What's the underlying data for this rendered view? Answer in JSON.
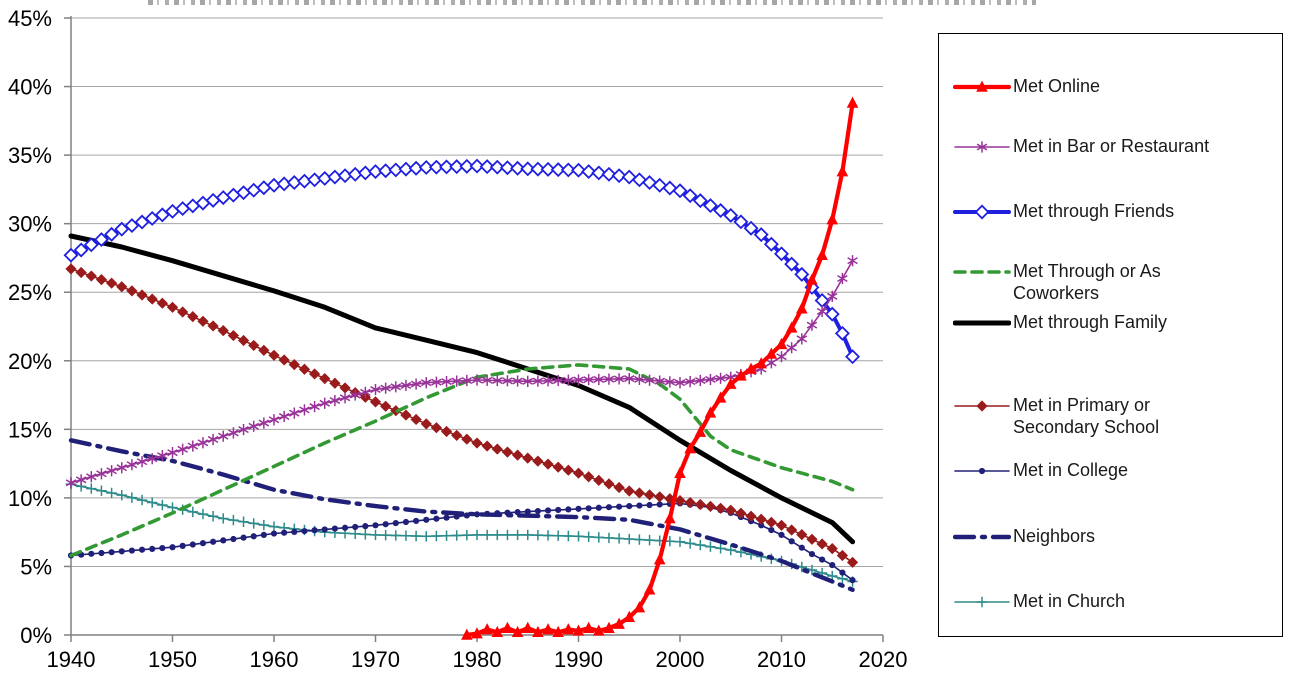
{
  "chart_data": {
    "type": "line",
    "title": "",
    "xlabel": "",
    "ylabel": "",
    "x_range": [
      1940,
      2020
    ],
    "y_range": [
      0,
      45
    ],
    "x_ticks": [
      1940,
      1950,
      1960,
      1970,
      1980,
      1990,
      2000,
      2010,
      2020
    ],
    "y_tick_labels": [
      "0%",
      "5%",
      "10%",
      "15%",
      "20%",
      "25%",
      "30%",
      "35%",
      "40%",
      "45%"
    ],
    "grid": "horizontal",
    "legend_position": "right",
    "axis_color": "#808080",
    "grid_color": "#a6a6a6",
    "series": [
      {
        "name": "Met Online",
        "color": "#ff0000",
        "line_width": 4.2,
        "dash": null,
        "marker": "triangle",
        "x": [
          1979,
          1980,
          1981,
          1982,
          1983,
          1984,
          1985,
          1986,
          1987,
          1988,
          1989,
          1990,
          1991,
          1992,
          1993,
          1994,
          1995,
          1996,
          1997,
          1998,
          1999,
          2000,
          2001,
          2002,
          2003,
          2004,
          2005,
          2006,
          2007,
          2008,
          2009,
          2010,
          2011,
          2012,
          2013,
          2014,
          2015,
          2016,
          2017
        ],
        "y": [
          0,
          0.1,
          0.4,
          0.2,
          0.5,
          0.2,
          0.5,
          0.2,
          0.4,
          0.2,
          0.4,
          0.3,
          0.5,
          0.3,
          0.5,
          0.8,
          1.3,
          2.0,
          3.3,
          5.5,
          8.5,
          11.8,
          13.6,
          14.8,
          16.2,
          17.3,
          18.3,
          18.9,
          19.4,
          19.8,
          20.5,
          21.2,
          22.4,
          23.8,
          25.9,
          27.7,
          30.3,
          33.8,
          38.8
        ]
      },
      {
        "name": "Met in Bar or Restaurant",
        "color": "#993399",
        "line_width": 1.6,
        "dash": null,
        "marker": "asterisk",
        "x": [
          1940,
          1945,
          1950,
          1955,
          1960,
          1965,
          1970,
          1975,
          1980,
          1985,
          1990,
          1995,
          2000,
          2005,
          2008,
          2010,
          2012,
          2014,
          2015,
          2016,
          2017
        ],
        "y": [
          11.1,
          12.2,
          13.3,
          14.5,
          15.7,
          16.9,
          17.9,
          18.4,
          18.6,
          18.5,
          18.6,
          18.7,
          18.4,
          18.8,
          19.4,
          20.3,
          21.6,
          23.6,
          24.7,
          26.0,
          27.3
        ]
      },
      {
        "name": "Met through Friends",
        "color": "#1f1fe0",
        "line_width": 4.0,
        "dash": null,
        "marker": "diamond-open",
        "x": [
          1940,
          1945,
          1950,
          1955,
          1960,
          1965,
          1970,
          1975,
          1980,
          1985,
          1990,
          1995,
          2000,
          2005,
          2008,
          2010,
          2012,
          2014,
          2015,
          2016,
          2017
        ],
        "y": [
          27.7,
          29.6,
          30.9,
          31.9,
          32.8,
          33.3,
          33.8,
          34.1,
          34.2,
          34.0,
          33.9,
          33.4,
          32.4,
          30.6,
          29.2,
          27.8,
          26.3,
          24.4,
          23.4,
          22.0,
          20.3
        ]
      },
      {
        "name": "Met Through or As Coworkers",
        "color": "#339933",
        "line_width": 3.6,
        "dash": "10 7",
        "marker": "none",
        "x": [
          1940,
          1945,
          1950,
          1955,
          1960,
          1965,
          1970,
          1975,
          1980,
          1985,
          1990,
          1995,
          1998,
          2000,
          2003,
          2005,
          2010,
          2015,
          2017
        ],
        "y": [
          5.8,
          7.3,
          8.9,
          10.6,
          12.3,
          14.0,
          15.6,
          17.3,
          18.8,
          19.4,
          19.7,
          19.4,
          18.3,
          17.2,
          14.5,
          13.5,
          12.2,
          11.2,
          10.6
        ]
      },
      {
        "name": "Met through Family",
        "color": "#000000",
        "line_width": 5.0,
        "dash": null,
        "marker": "none",
        "x": [
          1940,
          1945,
          1950,
          1955,
          1960,
          1965,
          1970,
          1975,
          1980,
          1985,
          1990,
          1995,
          2000,
          2005,
          2010,
          2015,
          2017
        ],
        "y": [
          29.1,
          28.3,
          27.3,
          26.2,
          25.1,
          23.9,
          22.4,
          21.5,
          20.6,
          19.4,
          18.2,
          16.6,
          14.2,
          12.0,
          10.0,
          8.2,
          6.8
        ]
      },
      {
        "name": "Met in Primary or Secondary School",
        "color": "#9a1b1b",
        "line_width": 1.6,
        "dash": null,
        "marker": "diamond",
        "x": [
          1940,
          1945,
          1950,
          1955,
          1960,
          1965,
          1970,
          1975,
          1980,
          1985,
          1990,
          1995,
          2000,
          2005,
          2010,
          2015,
          2017
        ],
        "y": [
          26.7,
          25.4,
          23.9,
          22.2,
          20.4,
          18.7,
          17.0,
          15.4,
          14.0,
          12.9,
          11.8,
          10.5,
          9.8,
          9.1,
          8.0,
          6.3,
          5.3
        ]
      },
      {
        "name": "Met in College",
        "color": "#202078",
        "line_width": 1.6,
        "dash": null,
        "marker": "circle",
        "x": [
          1940,
          1945,
          1950,
          1955,
          1960,
          1965,
          1970,
          1975,
          1980,
          1985,
          1990,
          1995,
          2000,
          2003,
          2005,
          2008,
          2010,
          2013,
          2015,
          2017
        ],
        "y": [
          5.8,
          6.1,
          6.4,
          6.9,
          7.4,
          7.7,
          8.0,
          8.4,
          8.8,
          9.0,
          9.2,
          9.4,
          9.6,
          9.3,
          8.9,
          8.0,
          7.3,
          5.9,
          5.1,
          4.0
        ]
      },
      {
        "name": "Neighbors",
        "color": "#202078",
        "line_width": 4.4,
        "dash": "19 8 3 8",
        "marker": "none",
        "x": [
          1940,
          1945,
          1950,
          1955,
          1960,
          1965,
          1970,
          1975,
          1980,
          1985,
          1990,
          1995,
          2000,
          2005,
          2010,
          2015,
          2017
        ],
        "y": [
          14.2,
          13.4,
          12.7,
          11.7,
          10.6,
          9.9,
          9.4,
          9.0,
          8.8,
          8.7,
          8.6,
          8.4,
          7.7,
          6.6,
          5.4,
          3.9,
          3.3
        ]
      },
      {
        "name": "Met in Church",
        "color": "#2e8b8b",
        "line_width": 1.6,
        "dash": null,
        "marker": "plus",
        "x": [
          1940,
          1945,
          1950,
          1955,
          1960,
          1965,
          1970,
          1975,
          1980,
          1985,
          1990,
          1995,
          2000,
          2005,
          2010,
          2015,
          2017
        ],
        "y": [
          11.0,
          10.2,
          9.3,
          8.5,
          7.9,
          7.5,
          7.3,
          7.2,
          7.3,
          7.3,
          7.2,
          7.0,
          6.8,
          6.2,
          5.4,
          4.3,
          3.9
        ]
      }
    ]
  }
}
